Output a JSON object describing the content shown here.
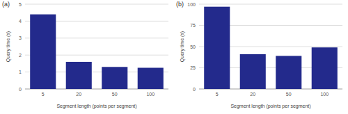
{
  "chart_data": [
    {
      "type": "bar",
      "title": "(a)",
      "x_label": "Segment length (points per segment)",
      "y_label": "Query time (s)",
      "categories": [
        "5",
        "20",
        "50",
        "100"
      ],
      "values": [
        4.4,
        1.6,
        1.3,
        1.25
      ],
      "color": "#232a8c",
      "ylim": [
        0,
        5
      ],
      "yticks": [
        0,
        1,
        2,
        3,
        4,
        5
      ],
      "grid": true
    },
    {
      "type": "bar",
      "title": "(b)",
      "x_label": "Segment length (points per segment)",
      "y_label": "Query time (s)",
      "categories": [
        "5",
        "20",
        "50",
        "100"
      ],
      "values": [
        97,
        41,
        39,
        49
      ],
      "color": "#232a8c",
      "ylim": [
        0,
        100
      ],
      "yticks": [
        0,
        25,
        50,
        75,
        100
      ],
      "grid": true
    }
  ]
}
